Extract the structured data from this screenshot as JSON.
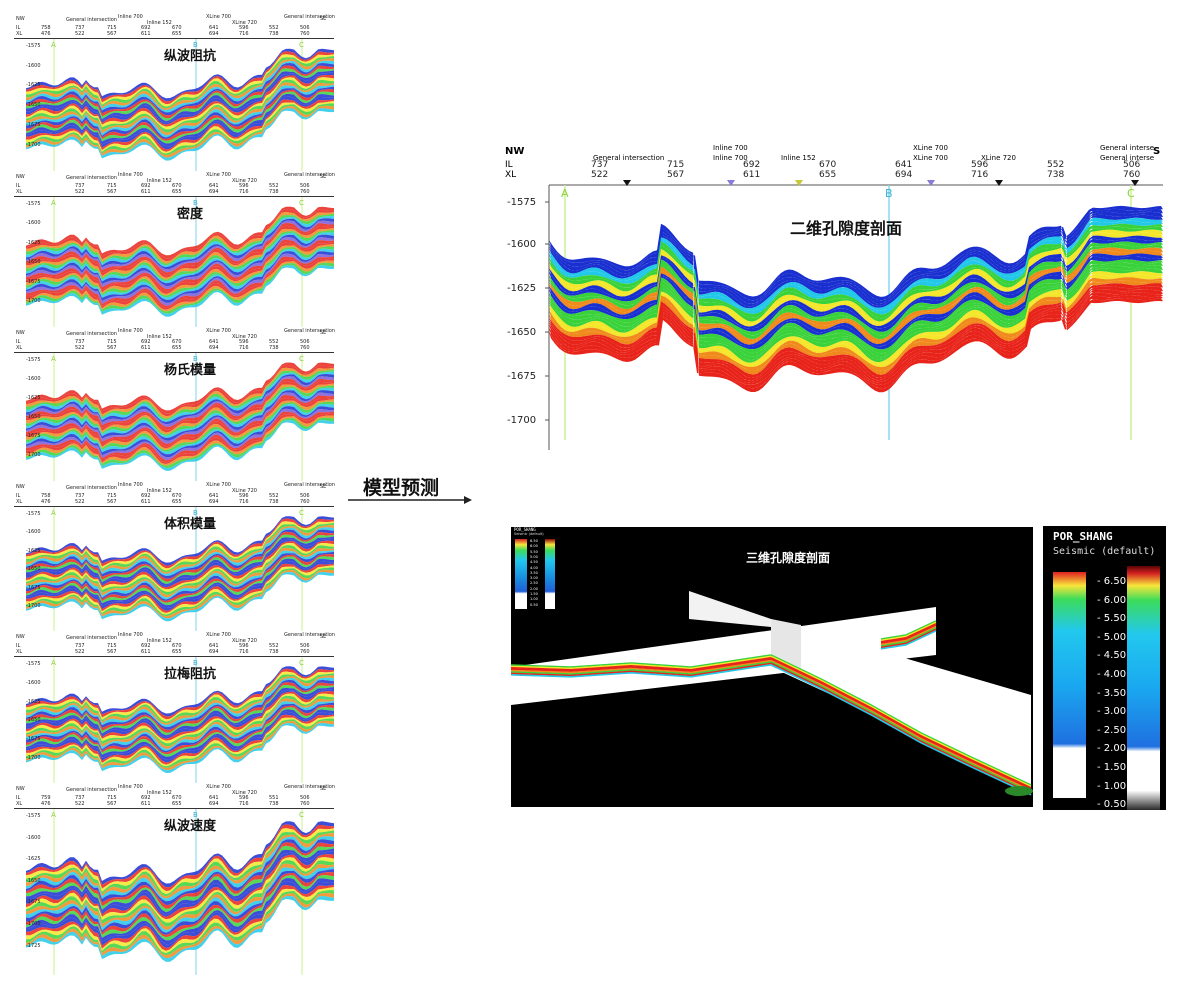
{
  "panels": [
    {
      "title": "纵波阻抗",
      "ticks": [
        {
          "il": "758",
          "xl": "476"
        },
        {
          "il": "737",
          "xl": "522"
        },
        {
          "il": "715",
          "xl": "567"
        },
        {
          "il": "692",
          "xl": "611"
        },
        {
          "il": "670",
          "xl": "655"
        },
        {
          "il": "641",
          "xl": "694"
        },
        {
          "il": "596",
          "xl": "716"
        },
        {
          "il": "552",
          "xl": "738"
        },
        {
          "il": "506",
          "xl": "760"
        }
      ],
      "depths": [
        "-1575",
        "-1600",
        "-1625",
        "-1650",
        "-1675",
        "-1700"
      ],
      "markers": [
        "A",
        "B",
        "C"
      ]
    },
    {
      "title": "密度",
      "ticks": [
        {
          "il": "737",
          "xl": "522"
        },
        {
          "il": "715",
          "xl": "567"
        },
        {
          "il": "692",
          "xl": "611"
        },
        {
          "il": "670",
          "xl": "655"
        },
        {
          "il": "641",
          "xl": "694"
        },
        {
          "il": "596",
          "xl": "716"
        },
        {
          "il": "552",
          "xl": "738"
        },
        {
          "il": "506",
          "xl": "760"
        }
      ],
      "depths": [
        "-1575",
        "-1600",
        "-1625",
        "-1650",
        "-1675",
        "-1700"
      ],
      "markers": [
        "A",
        "B",
        "C"
      ]
    },
    {
      "title": "杨氏模量",
      "ticks": [
        {
          "il": "737",
          "xl": "522"
        },
        {
          "il": "715",
          "xl": "567"
        },
        {
          "il": "692",
          "xl": "611"
        },
        {
          "il": "670",
          "xl": "655"
        },
        {
          "il": "641",
          "xl": "694"
        },
        {
          "il": "596",
          "xl": "716"
        },
        {
          "il": "552",
          "xl": "738"
        },
        {
          "il": "506",
          "xl": "760"
        }
      ],
      "depths": [
        "-1575",
        "-1600",
        "-1625",
        "-1650",
        "-1675",
        "-1700"
      ],
      "markers": [
        "A",
        "B",
        "C"
      ]
    },
    {
      "title": "体积模量",
      "ticks": [
        {
          "il": "758",
          "xl": "476"
        },
        {
          "il": "737",
          "xl": "522"
        },
        {
          "il": "715",
          "xl": "567"
        },
        {
          "il": "692",
          "xl": "611"
        },
        {
          "il": "670",
          "xl": "655"
        },
        {
          "il": "641",
          "xl": "694"
        },
        {
          "il": "596",
          "xl": "716"
        },
        {
          "il": "552",
          "xl": "738"
        },
        {
          "il": "506",
          "xl": "760"
        }
      ],
      "depths": [
        "-1575",
        "-1600",
        "-1625",
        "-1650",
        "-1675",
        "-1700"
      ],
      "markers": [
        "A",
        "B",
        "C"
      ]
    },
    {
      "title": "拉梅阻抗",
      "ticks": [
        {
          "il": "737",
          "xl": "522"
        },
        {
          "il": "715",
          "xl": "567"
        },
        {
          "il": "692",
          "xl": "611"
        },
        {
          "il": "670",
          "xl": "655"
        },
        {
          "il": "641",
          "xl": "694"
        },
        {
          "il": "596",
          "xl": "716"
        },
        {
          "il": "552",
          "xl": "738"
        },
        {
          "il": "506",
          "xl": "760"
        }
      ],
      "depths": [
        "-1575",
        "-1600",
        "-1625",
        "-1650",
        "-1675",
        "-1700"
      ],
      "markers": [
        "A",
        "B",
        "C"
      ]
    },
    {
      "title": "纵波速度",
      "ticks": [
        {
          "il": "759",
          "xl": "476"
        },
        {
          "il": "737",
          "xl": "522"
        },
        {
          "il": "715",
          "xl": "567"
        },
        {
          "il": "692",
          "xl": "611"
        },
        {
          "il": "670",
          "xl": "655"
        },
        {
          "il": "641",
          "xl": "694"
        },
        {
          "il": "596",
          "xl": "716"
        },
        {
          "il": "551",
          "xl": "738"
        },
        {
          "il": "506",
          "xl": "760"
        }
      ],
      "depths": [
        "-1575",
        "-1600",
        "-1625",
        "-1650",
        "-1675",
        "-1700",
        "-1725"
      ],
      "markers": [
        "A",
        "B",
        "C"
      ]
    }
  ],
  "header_common": {
    "nw": "NW",
    "se": "SE",
    "il": "IL",
    "xl": "XL",
    "gen": "General intersection",
    "inline": "Inline 700",
    "xline": "XLine 700",
    "inline152": "Inline 152",
    "xline720": "XLine 720"
  },
  "arrow_label": "模型预测",
  "section2d": {
    "title": "二维孔隙度剖面",
    "nw": "NW",
    "se": "S",
    "il": "IL",
    "xl": "XL",
    "labels": {
      "gen_left": "General intersection",
      "inline700a": "Inline 700",
      "inline700b": "Inline 700",
      "inline152": "Inline 152",
      "xline700a": "XLine 700",
      "xline700b": "XLine 700",
      "xline720": "XLine 720",
      "gen_right_a": "General interse",
      "gen_right_b": "General interse"
    },
    "ticks": [
      {
        "il": "737",
        "xl": "522"
      },
      {
        "il": "715",
        "xl": "567"
      },
      {
        "il": "692",
        "xl": "611"
      },
      {
        "il": "670",
        "xl": "655"
      },
      {
        "il": "641",
        "xl": "694"
      },
      {
        "il": "596",
        "xl": "716"
      },
      {
        "il": "552",
        "xl": "738"
      },
      {
        "il": "506",
        "xl": "760"
      }
    ],
    "depths": [
      "-1575",
      "-1600",
      "-1625",
      "-1650",
      "-1675",
      "-1700"
    ],
    "markers": [
      "A",
      "B",
      "C"
    ]
  },
  "section3d": {
    "title": "三维孔隙度剖面",
    "mini_title": "POR_SHANG",
    "mini_sub": "Seismic (default)",
    "mini_vals": [
      "6.50",
      "6.00",
      "5.50",
      "5.00",
      "4.50",
      "4.00",
      "3.50",
      "3.00",
      "2.50",
      "2.00",
      "1.50",
      "1.00",
      "0.50"
    ]
  },
  "colorbar": {
    "title": "POR_SHANG",
    "subtitle": "Seismic (default)",
    "values": [
      "6.50",
      "6.00",
      "5.50",
      "5.00",
      "4.50",
      "4.00",
      "3.50",
      "3.00",
      "2.50",
      "2.00",
      "1.50",
      "1.00",
      "0.50"
    ]
  },
  "colors": {
    "red": "#e8231a",
    "orange": "#f08a1c",
    "yellow": "#f4e62a",
    "green": "#3ad23a",
    "cyan": "#22c8e8",
    "blue": "#1a2fd0"
  }
}
